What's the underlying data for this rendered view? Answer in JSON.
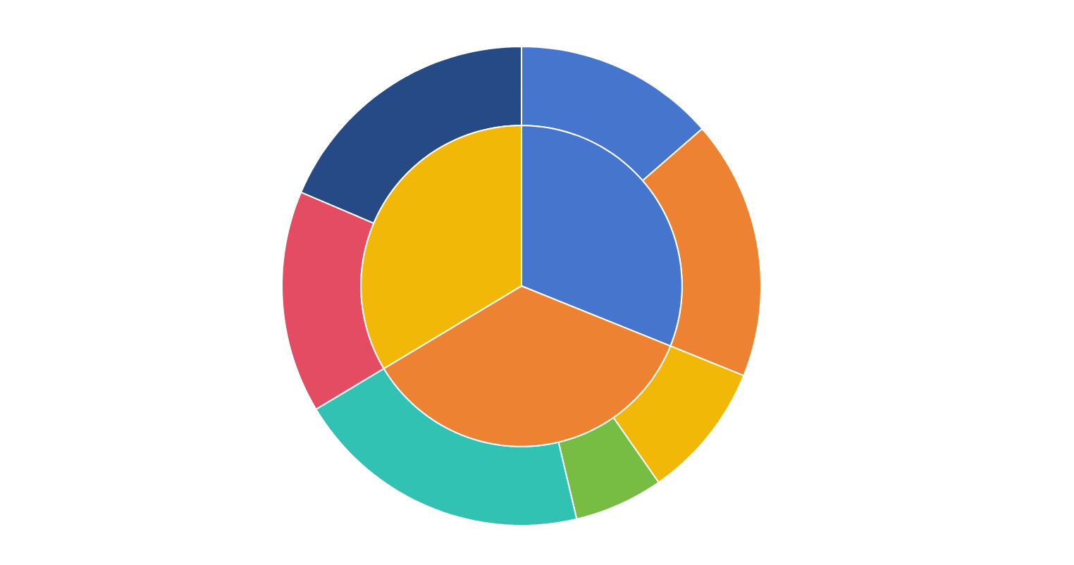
{
  "chart_data": [
    {
      "type": "pie",
      "categories": [
        null,
        null,
        null
      ],
      "values": [
        31.1,
        35.3,
        33.6
      ],
      "colors": [
        "#4675cd",
        "#ed8232",
        "#f2b807"
      ]
    },
    {
      "type": "donut",
      "categories": [
        null,
        null,
        null,
        null,
        null,
        null,
        null
      ],
      "values": [
        13.6,
        17.5,
        9.2,
        6.0,
        20.1,
        15.0,
        18.6
      ],
      "colors": [
        "#4675cd",
        "#ed8232",
        "#f2b807",
        "#78bd43",
        "#31c2b3",
        "#e34c62",
        "#264a85"
      ]
    }
  ]
}
